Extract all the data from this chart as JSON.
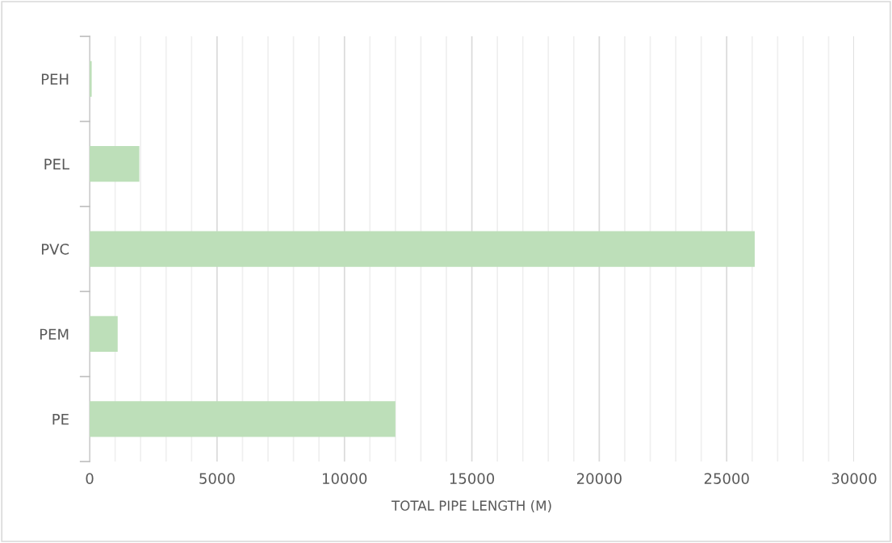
{
  "chart_data": {
    "type": "bar",
    "orientation": "horizontal",
    "xlabel": "TOTAL PIPE LENGTH (M)",
    "categories": [
      "PEH",
      "PEL",
      "PVC",
      "PEM",
      "PE"
    ],
    "values": [
      80,
      1950,
      26100,
      1100,
      12000
    ],
    "color": "#bddfb9",
    "xlim": [
      0,
      30000
    ],
    "xticks": [
      0,
      {
        "value": 1000,
        "label": null
      },
      {
        "value": 2000,
        "label": null
      },
      {
        "value": 3000,
        "label": null
      },
      {
        "value": 4000,
        "label": null
      },
      5000,
      {
        "value": 6000,
        "label": null
      },
      {
        "value": 7000,
        "label": null
      },
      {
        "value": 8000,
        "label": null
      },
      {
        "value": 9000,
        "label": null
      },
      10000,
      {
        "value": 11000,
        "label": null
      },
      {
        "value": 12000,
        "label": null
      },
      {
        "value": 13000,
        "label": null
      },
      {
        "value": 14000,
        "label": null
      },
      15000,
      {
        "value": 16000,
        "label": null
      },
      {
        "value": 17000,
        "label": null
      },
      {
        "value": 18000,
        "label": null
      },
      {
        "value": 19000,
        "label": null
      },
      20000,
      {
        "value": 21000,
        "label": null
      },
      {
        "value": 22000,
        "label": null
      },
      {
        "value": 23000,
        "label": null
      },
      {
        "value": 24000,
        "label": null
      },
      25000,
      {
        "value": 26000,
        "label": null
      },
      {
        "value": 27000,
        "label": null
      },
      {
        "value": 28000,
        "label": null
      },
      {
        "value": 29000,
        "label": null
      },
      30000
    ],
    "grid": "x"
  }
}
